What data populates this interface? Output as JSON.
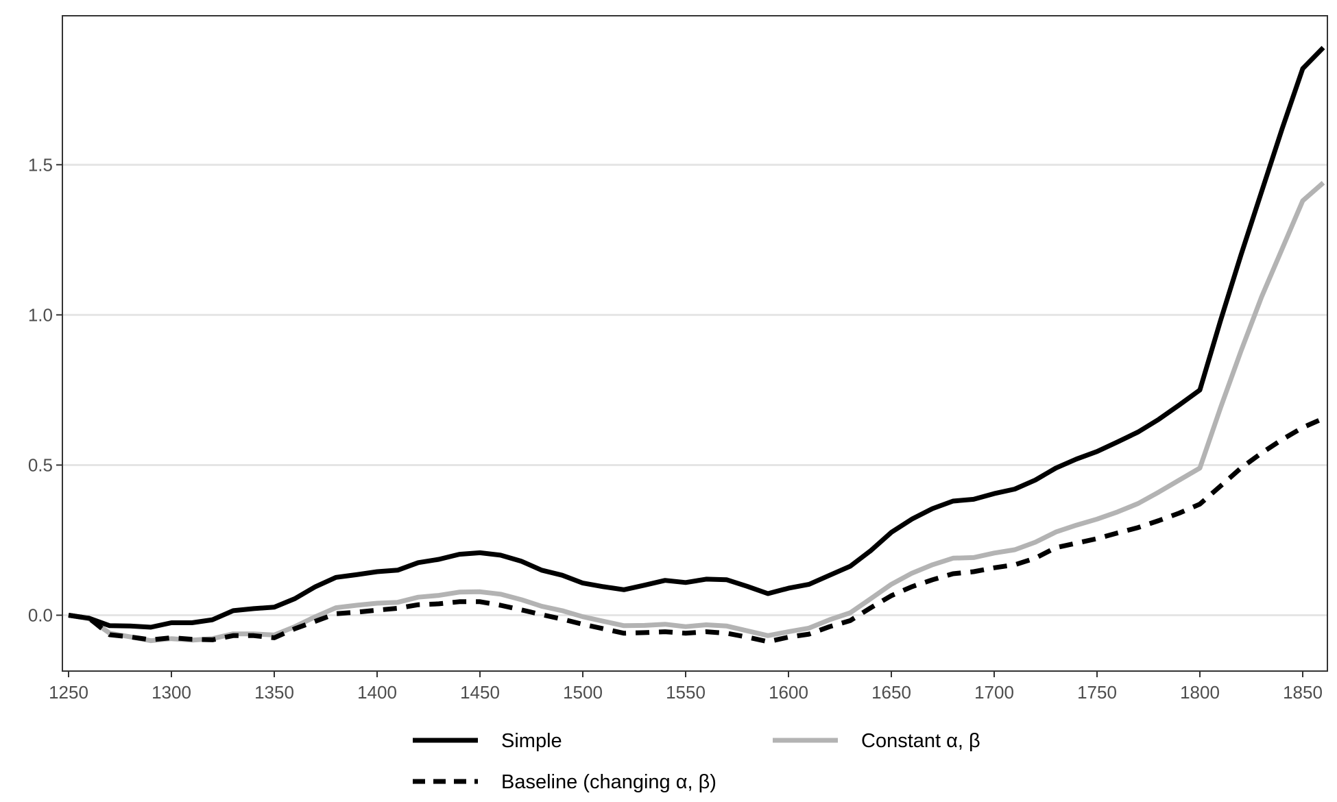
{
  "chart_data": {
    "type": "line",
    "title": "",
    "xlabel": "",
    "ylabel": "",
    "xlim": [
      1247,
      1862
    ],
    "ylim": [
      -0.186,
      1.996
    ],
    "x_ticks": [
      1250,
      1300,
      1350,
      1400,
      1450,
      1500,
      1550,
      1600,
      1650,
      1700,
      1750,
      1800,
      1850
    ],
    "x_tick_labels": [
      "1250",
      "1300",
      "1350",
      "1400",
      "1450",
      "1500",
      "1550",
      "1600",
      "1650",
      "1700",
      "1750",
      "1800",
      "1850"
    ],
    "y_ticks": [
      0.0,
      0.5,
      1.0,
      1.5
    ],
    "y_tick_labels": [
      "0.0",
      "0.5",
      "1.0",
      "1.5"
    ],
    "grid": "horizontal major lines",
    "legend_position": "bottom",
    "x": [
      1250,
      1260,
      1270,
      1280,
      1290,
      1300,
      1310,
      1320,
      1330,
      1340,
      1350,
      1360,
      1370,
      1380,
      1390,
      1400,
      1410,
      1420,
      1430,
      1440,
      1450,
      1460,
      1470,
      1480,
      1490,
      1500,
      1510,
      1520,
      1530,
      1540,
      1550,
      1560,
      1570,
      1580,
      1590,
      1600,
      1610,
      1620,
      1630,
      1640,
      1650,
      1660,
      1670,
      1680,
      1690,
      1700,
      1710,
      1720,
      1730,
      1740,
      1750,
      1760,
      1770,
      1780,
      1790,
      1800,
      1810,
      1820,
      1830,
      1840,
      1850,
      1860
    ],
    "series": [
      {
        "name": "Simple",
        "color": "#000000",
        "dash": "solid",
        "values": [
          0.0,
          -0.01,
          -0.035,
          -0.036,
          -0.04,
          -0.025,
          -0.025,
          -0.015,
          0.015,
          0.022,
          0.027,
          0.055,
          0.095,
          0.126,
          0.135,
          0.145,
          0.15,
          0.175,
          0.186,
          0.203,
          0.208,
          0.2,
          0.18,
          0.15,
          0.133,
          0.107,
          0.095,
          0.085,
          0.1,
          0.116,
          0.109,
          0.12,
          0.118,
          0.096,
          0.072,
          0.09,
          0.103,
          0.133,
          0.163,
          0.215,
          0.276,
          0.32,
          0.355,
          0.38,
          0.386,
          0.405,
          0.42,
          0.45,
          0.49,
          0.52,
          0.545,
          0.577,
          0.61,
          0.652,
          0.7,
          0.75,
          0.98,
          1.2,
          1.41,
          1.62,
          1.82,
          1.89
        ]
      },
      {
        "name": "Constant α, β",
        "color": "#b3b3b3",
        "dash": "solid",
        "values": [
          0.0,
          -0.012,
          -0.06,
          -0.072,
          -0.085,
          -0.078,
          -0.083,
          -0.078,
          -0.062,
          -0.062,
          -0.066,
          -0.038,
          -0.005,
          0.025,
          0.033,
          0.04,
          0.043,
          0.06,
          0.066,
          0.077,
          0.078,
          0.07,
          0.052,
          0.03,
          0.015,
          -0.005,
          -0.02,
          -0.035,
          -0.034,
          -0.03,
          -0.038,
          -0.032,
          -0.036,
          -0.052,
          -0.068,
          -0.055,
          -0.043,
          -0.015,
          0.008,
          0.055,
          0.103,
          0.14,
          0.168,
          0.19,
          0.192,
          0.207,
          0.218,
          0.243,
          0.277,
          0.3,
          0.32,
          0.344,
          0.372,
          0.41,
          0.45,
          0.49,
          0.69,
          0.88,
          1.06,
          1.22,
          1.38,
          1.44
        ]
      },
      {
        "name": "Baseline (changing α, β)",
        "color": "#000000",
        "dash": "dashed",
        "values": [
          0.0,
          -0.01,
          -0.065,
          -0.072,
          -0.082,
          -0.075,
          -0.08,
          -0.082,
          -0.068,
          -0.068,
          -0.075,
          -0.045,
          -0.02,
          0.005,
          0.01,
          0.017,
          0.023,
          0.035,
          0.038,
          0.045,
          0.045,
          0.033,
          0.018,
          0.002,
          -0.013,
          -0.03,
          -0.045,
          -0.06,
          -0.058,
          -0.055,
          -0.06,
          -0.055,
          -0.06,
          -0.073,
          -0.088,
          -0.073,
          -0.063,
          -0.038,
          -0.018,
          0.025,
          0.065,
          0.095,
          0.118,
          0.138,
          0.145,
          0.158,
          0.168,
          0.19,
          0.225,
          0.24,
          0.255,
          0.274,
          0.292,
          0.315,
          0.34,
          0.37,
          0.43,
          0.49,
          0.54,
          0.585,
          0.625,
          0.655
        ]
      }
    ]
  },
  "legend": {
    "items": [
      {
        "label": "Simple",
        "color": "#000000",
        "dash": "solid"
      },
      {
        "label": "Constant α, β",
        "color": "#b3b3b3",
        "dash": "solid"
      },
      {
        "label": "Baseline (changing α, β)",
        "color": "#000000",
        "dash": "dashed"
      }
    ]
  }
}
